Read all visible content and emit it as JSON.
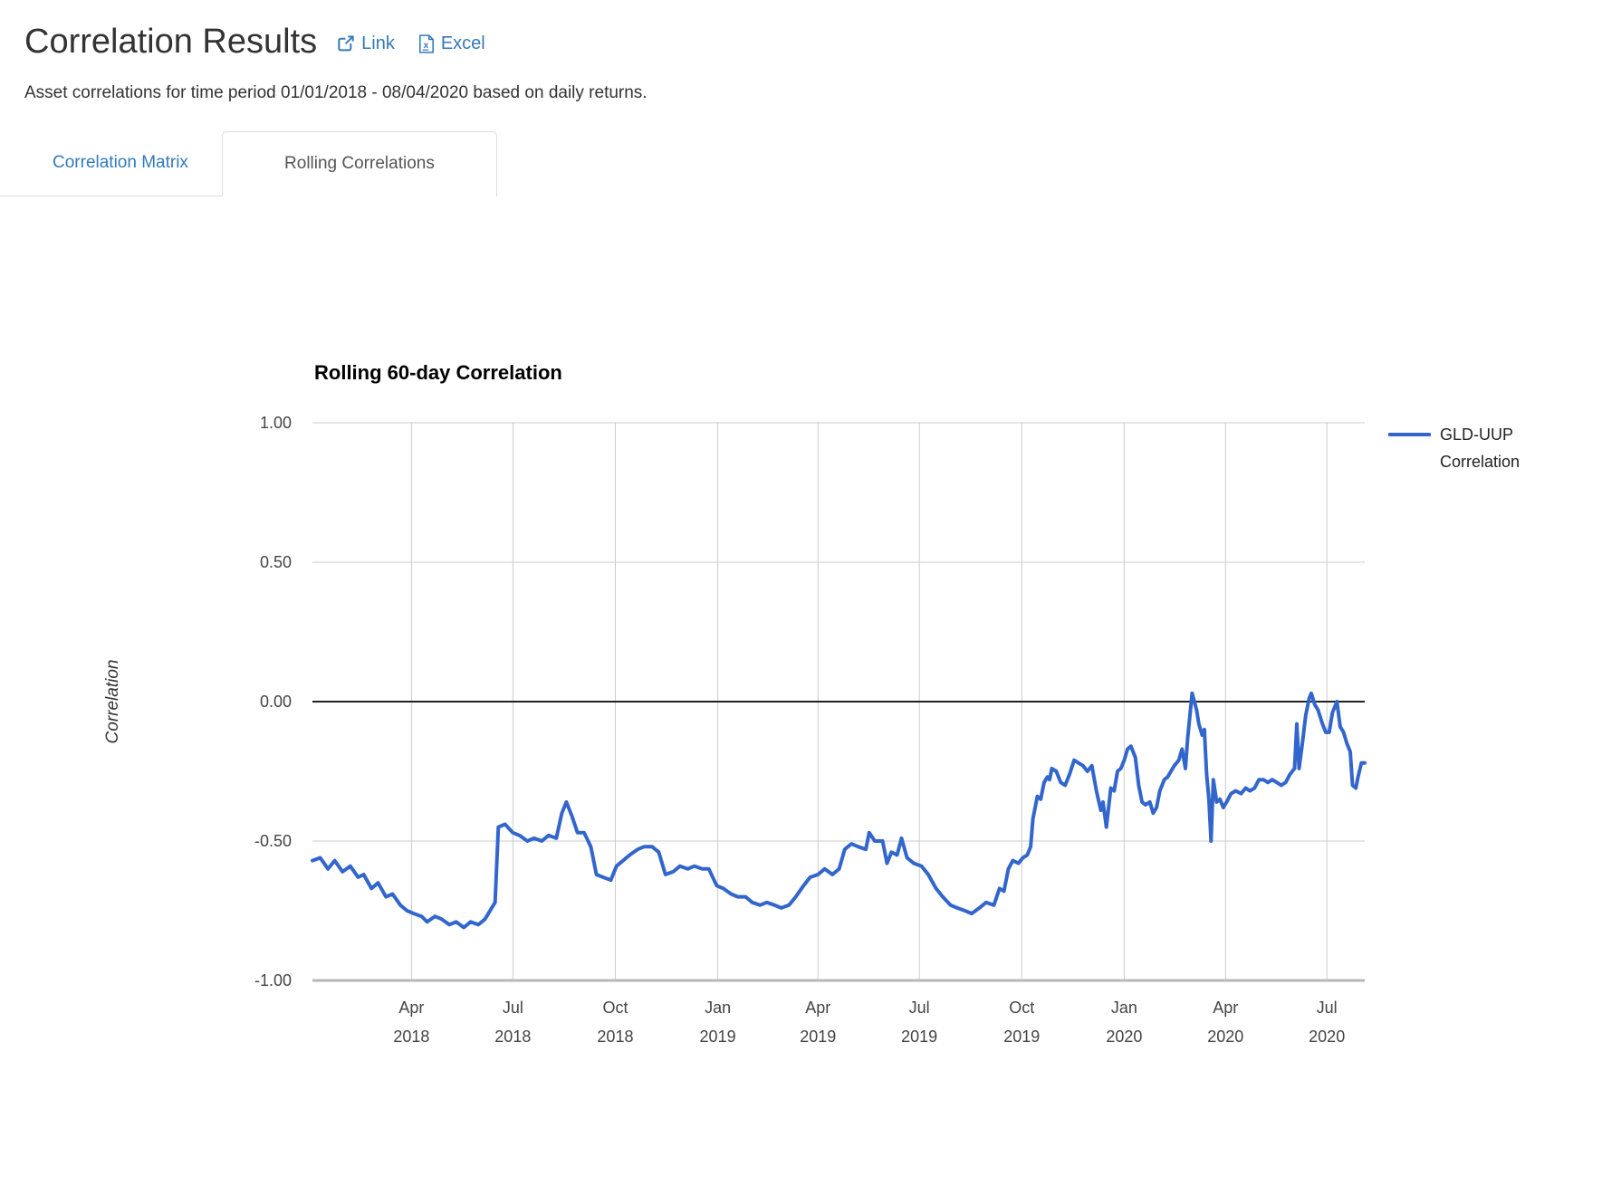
{
  "page": {
    "title": "Correlation Results",
    "links": [
      {
        "label": "Link"
      },
      {
        "label": "Excel"
      }
    ],
    "subtitle": "Asset correlations for time period 01/01/2018 - 08/04/2020 based on daily returns.",
    "tabs": [
      {
        "label": "Correlation Matrix",
        "active": false
      },
      {
        "label": "Rolling Correlations",
        "active": true
      }
    ]
  },
  "colors": {
    "link_blue": "#337ab7",
    "series_blue": "#3366cc",
    "grid": "#cccccc",
    "axis_base": "#b8b8b8",
    "zero_line": "#222222",
    "axis_label": "#444444",
    "tab_border": "#dddddd",
    "tab_active_text": "#555555",
    "heading": "#333333"
  },
  "chart_data": {
    "type": "line",
    "title": "Rolling 60-day Correlation",
    "ylabel": "Correlation",
    "ylim": [
      -1.0,
      1.0
    ],
    "grid": true,
    "legend_position": "right",
    "x_range": {
      "start": "2018-01-02",
      "end": "2020-08-04"
    },
    "yticks": [
      {
        "v": 1.0,
        "label": "1.00"
      },
      {
        "v": 0.5,
        "label": "0.50"
      },
      {
        "v": 0.0,
        "label": "0.00"
      },
      {
        "v": -0.5,
        "label": "-0.50"
      },
      {
        "v": -1.0,
        "label": "-1.00"
      }
    ],
    "xticks": [
      {
        "d": "2018-04-01",
        "month": "Apr",
        "year": "2018"
      },
      {
        "d": "2018-07-01",
        "month": "Jul",
        "year": "2018"
      },
      {
        "d": "2018-10-01",
        "month": "Oct",
        "year": "2018"
      },
      {
        "d": "2019-01-01",
        "month": "Jan",
        "year": "2019"
      },
      {
        "d": "2019-04-01",
        "month": "Apr",
        "year": "2019"
      },
      {
        "d": "2019-07-01",
        "month": "Jul",
        "year": "2019"
      },
      {
        "d": "2019-10-01",
        "month": "Oct",
        "year": "2019"
      },
      {
        "d": "2020-01-01",
        "month": "Jan",
        "year": "2020"
      },
      {
        "d": "2020-04-01",
        "month": "Apr",
        "year": "2020"
      },
      {
        "d": "2020-07-01",
        "month": "Jul",
        "year": "2020"
      }
    ],
    "series": [
      {
        "name": "GLD-UUP Correlation",
        "legend_lines": [
          "GLD-UUP",
          "Correlation"
        ],
        "color": "#3366cc",
        "points": [
          [
            "2018-01-02",
            -0.57
          ],
          [
            "2018-01-09",
            -0.56
          ],
          [
            "2018-01-16",
            -0.6
          ],
          [
            "2018-01-22",
            -0.57
          ],
          [
            "2018-01-29",
            -0.61
          ],
          [
            "2018-02-05",
            -0.59
          ],
          [
            "2018-02-12",
            -0.63
          ],
          [
            "2018-02-17",
            -0.62
          ],
          [
            "2018-02-24",
            -0.67
          ],
          [
            "2018-03-02",
            -0.65
          ],
          [
            "2018-03-09",
            -0.7
          ],
          [
            "2018-03-15",
            -0.69
          ],
          [
            "2018-03-22",
            -0.73
          ],
          [
            "2018-03-28",
            -0.75
          ],
          [
            "2018-04-03",
            -0.76
          ],
          [
            "2018-04-10",
            -0.77
          ],
          [
            "2018-04-15",
            -0.79
          ],
          [
            "2018-04-22",
            -0.77
          ],
          [
            "2018-04-28",
            -0.78
          ],
          [
            "2018-05-05",
            -0.8
          ],
          [
            "2018-05-11",
            -0.79
          ],
          [
            "2018-05-18",
            -0.81
          ],
          [
            "2018-05-24",
            -0.79
          ],
          [
            "2018-05-31",
            -0.8
          ],
          [
            "2018-06-06",
            -0.78
          ],
          [
            "2018-06-12",
            -0.74
          ],
          [
            "2018-06-15",
            -0.72
          ],
          [
            "2018-06-18",
            -0.45
          ],
          [
            "2018-06-24",
            -0.44
          ],
          [
            "2018-07-01",
            -0.47
          ],
          [
            "2018-07-07",
            -0.48
          ],
          [
            "2018-07-14",
            -0.5
          ],
          [
            "2018-07-20",
            -0.49
          ],
          [
            "2018-07-27",
            -0.5
          ],
          [
            "2018-08-02",
            -0.48
          ],
          [
            "2018-08-09",
            -0.49
          ],
          [
            "2018-08-14",
            -0.4
          ],
          [
            "2018-08-18",
            -0.36
          ],
          [
            "2018-08-23",
            -0.41
          ],
          [
            "2018-08-28",
            -0.47
          ],
          [
            "2018-09-03",
            -0.47
          ],
          [
            "2018-09-09",
            -0.52
          ],
          [
            "2018-09-14",
            -0.62
          ],
          [
            "2018-09-20",
            -0.63
          ],
          [
            "2018-09-27",
            -0.64
          ],
          [
            "2018-10-02",
            -0.59
          ],
          [
            "2018-10-08",
            -0.57
          ],
          [
            "2018-10-14",
            -0.55
          ],
          [
            "2018-10-21",
            -0.53
          ],
          [
            "2018-10-27",
            -0.52
          ],
          [
            "2018-11-03",
            -0.52
          ],
          [
            "2018-11-09",
            -0.54
          ],
          [
            "2018-11-15",
            -0.62
          ],
          [
            "2018-11-22",
            -0.61
          ],
          [
            "2018-11-28",
            -0.59
          ],
          [
            "2018-12-05",
            -0.6
          ],
          [
            "2018-12-11",
            -0.59
          ],
          [
            "2018-12-18",
            -0.6
          ],
          [
            "2018-12-24",
            -0.6
          ],
          [
            "2018-12-31",
            -0.66
          ],
          [
            "2019-01-06",
            -0.67
          ],
          [
            "2019-01-13",
            -0.69
          ],
          [
            "2019-01-19",
            -0.7
          ],
          [
            "2019-01-26",
            -0.7
          ],
          [
            "2019-02-01",
            -0.72
          ],
          [
            "2019-02-08",
            -0.73
          ],
          [
            "2019-02-14",
            -0.72
          ],
          [
            "2019-02-21",
            -0.73
          ],
          [
            "2019-02-27",
            -0.74
          ],
          [
            "2019-03-06",
            -0.73
          ],
          [
            "2019-03-12",
            -0.7
          ],
          [
            "2019-03-19",
            -0.66
          ],
          [
            "2019-03-25",
            -0.63
          ],
          [
            "2019-04-01",
            -0.62
          ],
          [
            "2019-04-07",
            -0.6
          ],
          [
            "2019-04-14",
            -0.62
          ],
          [
            "2019-04-20",
            -0.6
          ],
          [
            "2019-04-25",
            -0.53
          ],
          [
            "2019-05-01",
            -0.51
          ],
          [
            "2019-05-07",
            -0.52
          ],
          [
            "2019-05-14",
            -0.53
          ],
          [
            "2019-05-17",
            -0.47
          ],
          [
            "2019-05-22",
            -0.5
          ],
          [
            "2019-05-29",
            -0.5
          ],
          [
            "2019-06-02",
            -0.58
          ],
          [
            "2019-06-06",
            -0.54
          ],
          [
            "2019-06-11",
            -0.55
          ],
          [
            "2019-06-15",
            -0.49
          ],
          [
            "2019-06-20",
            -0.56
          ],
          [
            "2019-06-26",
            -0.58
          ],
          [
            "2019-07-03",
            -0.59
          ],
          [
            "2019-07-09",
            -0.62
          ],
          [
            "2019-07-16",
            -0.67
          ],
          [
            "2019-07-22",
            -0.7
          ],
          [
            "2019-07-29",
            -0.73
          ],
          [
            "2019-08-04",
            -0.74
          ],
          [
            "2019-08-11",
            -0.75
          ],
          [
            "2019-08-17",
            -0.76
          ],
          [
            "2019-08-24",
            -0.74
          ],
          [
            "2019-08-30",
            -0.72
          ],
          [
            "2019-09-06",
            -0.73
          ],
          [
            "2019-09-11",
            -0.67
          ],
          [
            "2019-09-15",
            -0.68
          ],
          [
            "2019-09-19",
            -0.6
          ],
          [
            "2019-09-23",
            -0.57
          ],
          [
            "2019-09-28",
            -0.58
          ],
          [
            "2019-10-02",
            -0.56
          ],
          [
            "2019-10-06",
            -0.55
          ],
          [
            "2019-10-09",
            -0.52
          ],
          [
            "2019-10-11",
            -0.42
          ],
          [
            "2019-10-15",
            -0.34
          ],
          [
            "2019-10-18",
            -0.35
          ],
          [
            "2019-10-21",
            -0.29
          ],
          [
            "2019-10-24",
            -0.27
          ],
          [
            "2019-10-26",
            -0.28
          ],
          [
            "2019-10-28",
            -0.24
          ],
          [
            "2019-11-01",
            -0.25
          ],
          [
            "2019-11-05",
            -0.29
          ],
          [
            "2019-11-09",
            -0.3
          ],
          [
            "2019-11-13",
            -0.26
          ],
          [
            "2019-11-17",
            -0.21
          ],
          [
            "2019-11-21",
            -0.22
          ],
          [
            "2019-11-25",
            -0.23
          ],
          [
            "2019-11-29",
            -0.25
          ],
          [
            "2019-12-03",
            -0.23
          ],
          [
            "2019-12-07",
            -0.32
          ],
          [
            "2019-12-11",
            -0.39
          ],
          [
            "2019-12-13",
            -0.36
          ],
          [
            "2019-12-16",
            -0.45
          ],
          [
            "2019-12-20",
            -0.31
          ],
          [
            "2019-12-23",
            -0.32
          ],
          [
            "2019-12-26",
            -0.25
          ],
          [
            "2019-12-29",
            -0.24
          ],
          [
            "2020-01-01",
            -0.21
          ],
          [
            "2020-01-04",
            -0.17
          ],
          [
            "2020-01-07",
            -0.16
          ],
          [
            "2020-01-11",
            -0.2
          ],
          [
            "2020-01-14",
            -0.3
          ],
          [
            "2020-01-17",
            -0.36
          ],
          [
            "2020-01-20",
            -0.37
          ],
          [
            "2020-01-24",
            -0.36
          ],
          [
            "2020-01-27",
            -0.4
          ],
          [
            "2020-01-30",
            -0.38
          ],
          [
            "2020-02-02",
            -0.32
          ],
          [
            "2020-02-06",
            -0.28
          ],
          [
            "2020-02-09",
            -0.27
          ],
          [
            "2020-02-12",
            -0.25
          ],
          [
            "2020-02-15",
            -0.23
          ],
          [
            "2020-02-19",
            -0.21
          ],
          [
            "2020-02-22",
            -0.17
          ],
          [
            "2020-02-25",
            -0.24
          ],
          [
            "2020-02-27",
            -0.13
          ],
          [
            "2020-03-02",
            0.03
          ],
          [
            "2020-03-04",
            0.0
          ],
          [
            "2020-03-06",
            -0.03
          ],
          [
            "2020-03-08",
            -0.08
          ],
          [
            "2020-03-11",
            -0.12
          ],
          [
            "2020-03-13",
            -0.1
          ],
          [
            "2020-03-15",
            -0.26
          ],
          [
            "2020-03-17",
            -0.35
          ],
          [
            "2020-03-19",
            -0.5
          ],
          [
            "2020-03-21",
            -0.28
          ],
          [
            "2020-03-24",
            -0.36
          ],
          [
            "2020-03-27",
            -0.35
          ],
          [
            "2020-03-30",
            -0.38
          ],
          [
            "2020-04-02",
            -0.36
          ],
          [
            "2020-04-06",
            -0.33
          ],
          [
            "2020-04-10",
            -0.32
          ],
          [
            "2020-04-15",
            -0.33
          ],
          [
            "2020-04-19",
            -0.31
          ],
          [
            "2020-04-23",
            -0.32
          ],
          [
            "2020-04-27",
            -0.31
          ],
          [
            "2020-05-01",
            -0.28
          ],
          [
            "2020-05-05",
            -0.28
          ],
          [
            "2020-05-09",
            -0.29
          ],
          [
            "2020-05-13",
            -0.28
          ],
          [
            "2020-05-17",
            -0.29
          ],
          [
            "2020-05-21",
            -0.3
          ],
          [
            "2020-05-25",
            -0.29
          ],
          [
            "2020-05-29",
            -0.26
          ],
          [
            "2020-06-02",
            -0.24
          ],
          [
            "2020-06-04",
            -0.08
          ],
          [
            "2020-06-06",
            -0.24
          ],
          [
            "2020-06-09",
            -0.15
          ],
          [
            "2020-06-12",
            -0.05
          ],
          [
            "2020-06-15",
            0.01
          ],
          [
            "2020-06-17",
            0.03
          ],
          [
            "2020-06-20",
            -0.01
          ],
          [
            "2020-06-23",
            -0.03
          ],
          [
            "2020-06-27",
            -0.08
          ],
          [
            "2020-06-30",
            -0.11
          ],
          [
            "2020-07-03",
            -0.11
          ],
          [
            "2020-07-06",
            -0.04
          ],
          [
            "2020-07-10",
            0.0
          ],
          [
            "2020-07-13",
            -0.09
          ],
          [
            "2020-07-16",
            -0.11
          ],
          [
            "2020-07-19",
            -0.15
          ],
          [
            "2020-07-22",
            -0.18
          ],
          [
            "2020-07-24",
            -0.3
          ],
          [
            "2020-07-27",
            -0.31
          ],
          [
            "2020-07-29",
            -0.27
          ],
          [
            "2020-08-01",
            -0.22
          ],
          [
            "2020-08-04",
            -0.22
          ]
        ]
      }
    ]
  }
}
